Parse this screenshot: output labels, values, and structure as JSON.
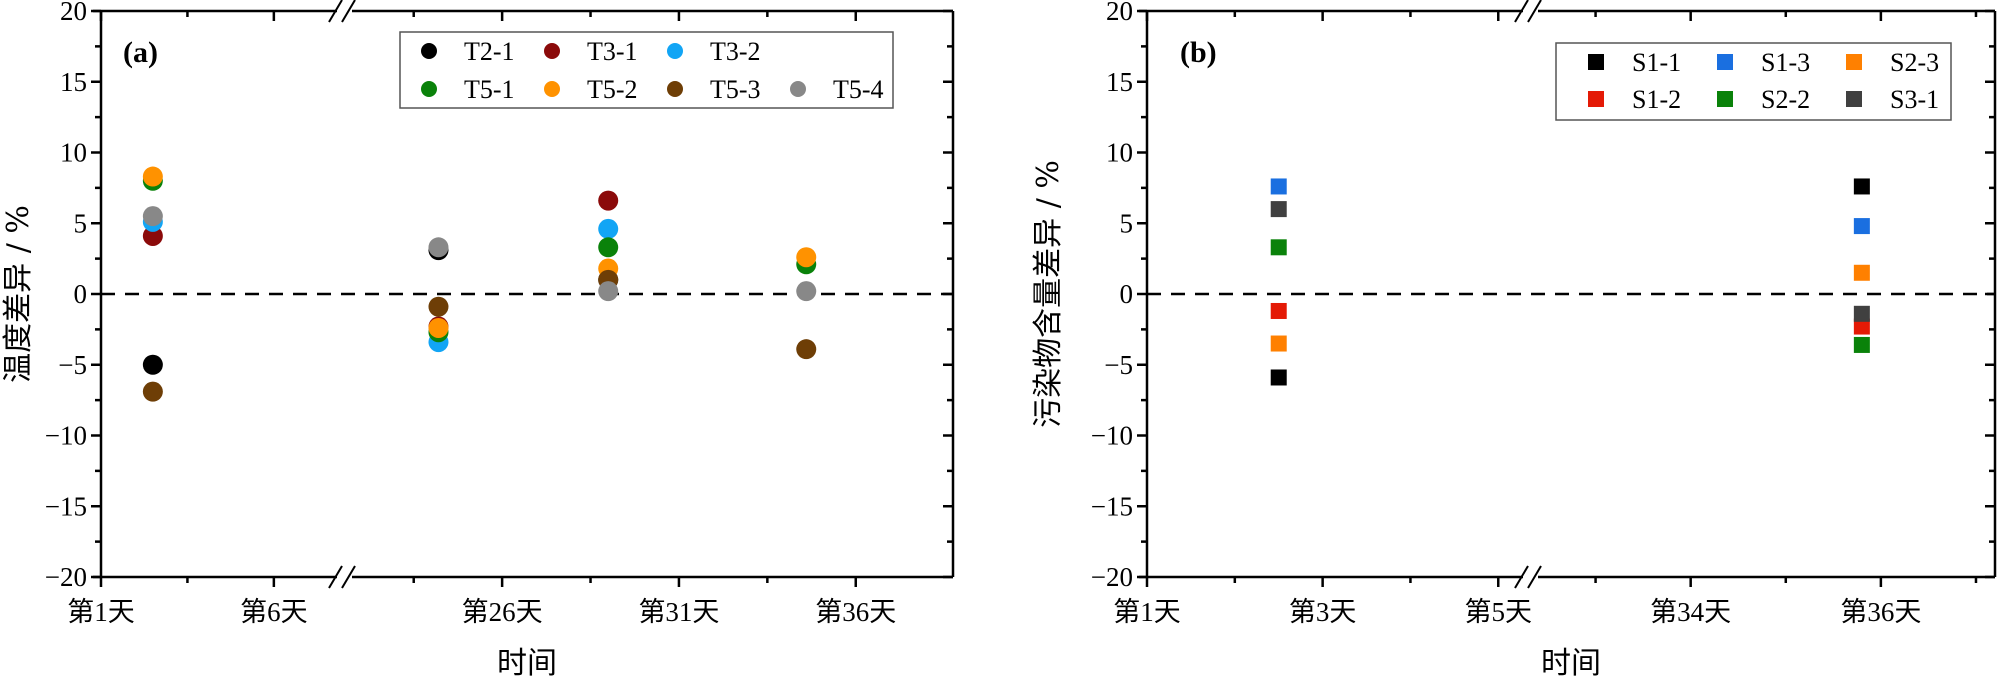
{
  "chart_data": [
    {
      "type": "scatter",
      "panel_label": "(a)",
      "title": "",
      "xlabel": "时间",
      "ylabel": "温度差异 / %",
      "ylim": [
        -20,
        20
      ],
      "yticks": [
        -20,
        -15,
        -10,
        -5,
        0,
        5,
        10,
        15,
        20
      ],
      "y_minor_step": 2.5,
      "x_axis_break": true,
      "x_segments": [
        {
          "from_day": 1,
          "to_day": 8,
          "ticks": [
            {
              "day": 1,
              "label": "第1天"
            },
            {
              "day": 3.5,
              "label": ""
            },
            {
              "day": 6,
              "label": "第6天"
            }
          ]
        },
        {
          "from_day": 21.5,
          "to_day": 38.75,
          "ticks": [
            {
              "day": 23.5,
              "label": ""
            },
            {
              "day": 26,
              "label": "第26天"
            },
            {
              "day": 28.5,
              "label": ""
            },
            {
              "day": 31,
              "label": "第31天"
            },
            {
              "day": 33.5,
              "label": ""
            },
            {
              "day": 36,
              "label": "第36天"
            }
          ]
        }
      ],
      "reference_line": {
        "y": 0,
        "style": "dashed"
      },
      "marker": "circle",
      "legend": {
        "position": "top-right",
        "columns": 4
      },
      "x_positions": [
        2.5,
        24.2,
        29.0,
        34.6
      ],
      "series": [
        {
          "name": "T2-1",
          "color": "#000000",
          "values": [
            -5.0,
            3.1,
            1.0,
            null
          ]
        },
        {
          "name": "T3-1",
          "color": "#8b0a0a",
          "values": [
            4.1,
            -2.3,
            6.6,
            null
          ]
        },
        {
          "name": "T3-2",
          "color": "#12a5f5",
          "values": [
            5.1,
            -3.4,
            4.6,
            null
          ]
        },
        {
          "name": "T5-1",
          "color": "#0a820a",
          "values": [
            8.0,
            -2.7,
            3.3,
            2.1
          ]
        },
        {
          "name": "T5-2",
          "color": "#ff9200",
          "values": [
            8.3,
            -2.4,
            1.8,
            2.6
          ]
        },
        {
          "name": "T5-3",
          "color": "#6e3e06",
          "values": [
            -6.9,
            -0.9,
            1.0,
            -3.9
          ]
        },
        {
          "name": "T5-4",
          "color": "#888888",
          "values": [
            5.5,
            3.3,
            0.2,
            0.2
          ]
        }
      ]
    },
    {
      "type": "scatter",
      "panel_label": "(b)",
      "title": "",
      "xlabel": "时间",
      "ylabel": "污染物含量差异 / %",
      "ylim": [
        -20,
        20
      ],
      "yticks": [
        -20,
        -15,
        -10,
        -5,
        0,
        5,
        10,
        15,
        20
      ],
      "y_minor_step": 2.5,
      "x_axis_break": true,
      "x_segments": [
        {
          "from_day": 1,
          "to_day": 5.35,
          "ticks": [
            {
              "day": 1,
              "label": "第1天"
            },
            {
              "day": 2,
              "label": ""
            },
            {
              "day": 3,
              "label": "第3天"
            },
            {
              "day": 4,
              "label": ""
            },
            {
              "day": 5,
              "label": "第5天"
            }
          ]
        },
        {
          "from_day": 32.3,
          "to_day": 37.2,
          "ticks": [
            {
              "day": 33,
              "label": ""
            },
            {
              "day": 34,
              "label": "第34天"
            },
            {
              "day": 35,
              "label": ""
            },
            {
              "day": 36,
              "label": "第36天"
            },
            {
              "day": 37,
              "label": ""
            }
          ]
        }
      ],
      "reference_line": {
        "y": 0,
        "style": "dashed"
      },
      "marker": "square",
      "legend": {
        "position": "top-right",
        "columns": 3
      },
      "x_positions": [
        2.5,
        35.8
      ],
      "series": [
        {
          "name": "S1-1",
          "color": "#000000",
          "values": [
            -5.9,
            7.6
          ]
        },
        {
          "name": "S1-2",
          "color": "#e41a06",
          "values": [
            -1.2,
            -2.3
          ]
        },
        {
          "name": "S1-3",
          "color": "#1a6fe0",
          "values": [
            7.6,
            4.8
          ]
        },
        {
          "name": "S2-2",
          "color": "#0a820a",
          "values": [
            3.3,
            -3.6
          ]
        },
        {
          "name": "S2-3",
          "color": "#ff8000",
          "values": [
            -3.5,
            1.5
          ]
        },
        {
          "name": "S3-1",
          "color": "#404040",
          "values": [
            6.0,
            -1.4
          ]
        }
      ]
    }
  ]
}
